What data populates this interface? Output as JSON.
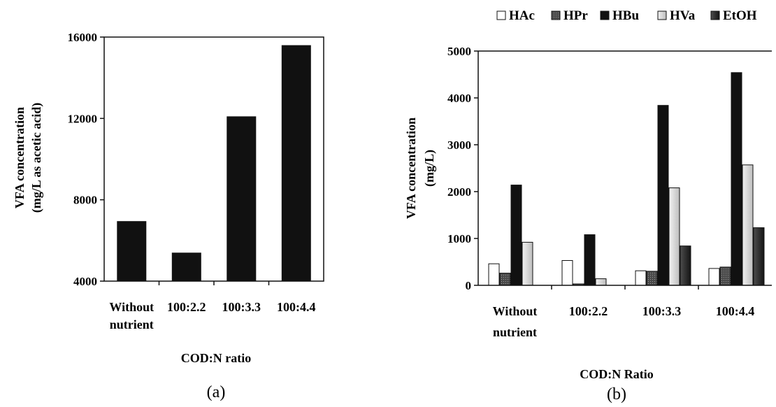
{
  "chart_data": [
    {
      "type": "bar",
      "panel_label": "(a)",
      "categories": [
        [
          "Without",
          "nutrient"
        ],
        [
          "100:2.2"
        ],
        [
          "100:3.3"
        ],
        [
          "100:4.4"
        ]
      ],
      "values": [
        6950,
        5400,
        12100,
        15600
      ],
      "xlabel": "COD:N ratio",
      "ylabel": [
        "VFA concentration",
        "(mg/L as acetic acid)"
      ],
      "ylim": [
        4000,
        16000
      ],
      "yticks": [
        "4000",
        "8000",
        "12000",
        "16000"
      ],
      "grid": false,
      "legend": "none",
      "bar_color": "#111111"
    },
    {
      "type": "bar",
      "panel_label": "(b)",
      "categories": [
        [
          "Without",
          "nutrient"
        ],
        [
          "100:2.2"
        ],
        [
          "100:3.3"
        ],
        [
          "100:4.4"
        ]
      ],
      "series": [
        {
          "name": "HAc",
          "values": [
            460,
            530,
            310,
            360
          ],
          "fill": "#ffffff"
        },
        {
          "name": "HPr",
          "values": [
            260,
            30,
            300,
            390
          ],
          "fill": "#555555"
        },
        {
          "name": "HBu",
          "values": [
            2140,
            1080,
            3840,
            4540
          ],
          "fill": "#111111"
        },
        {
          "name": "HVa",
          "values": [
            920,
            140,
            2080,
            2570
          ],
          "fill": "#d9d9d9"
        },
        {
          "name": "EtOH",
          "values": [
            0,
            0,
            840,
            1230
          ],
          "fill": "#2a2a2a"
        }
      ],
      "xlabel": "COD:N Ratio",
      "ylabel": [
        "VFA concentration",
        "(mg/L)"
      ],
      "ylim": [
        0,
        5000
      ],
      "yticks": [
        "0",
        "1000",
        "2000",
        "3000",
        "4000",
        "5000"
      ],
      "grid": false,
      "legend": "top"
    }
  ]
}
